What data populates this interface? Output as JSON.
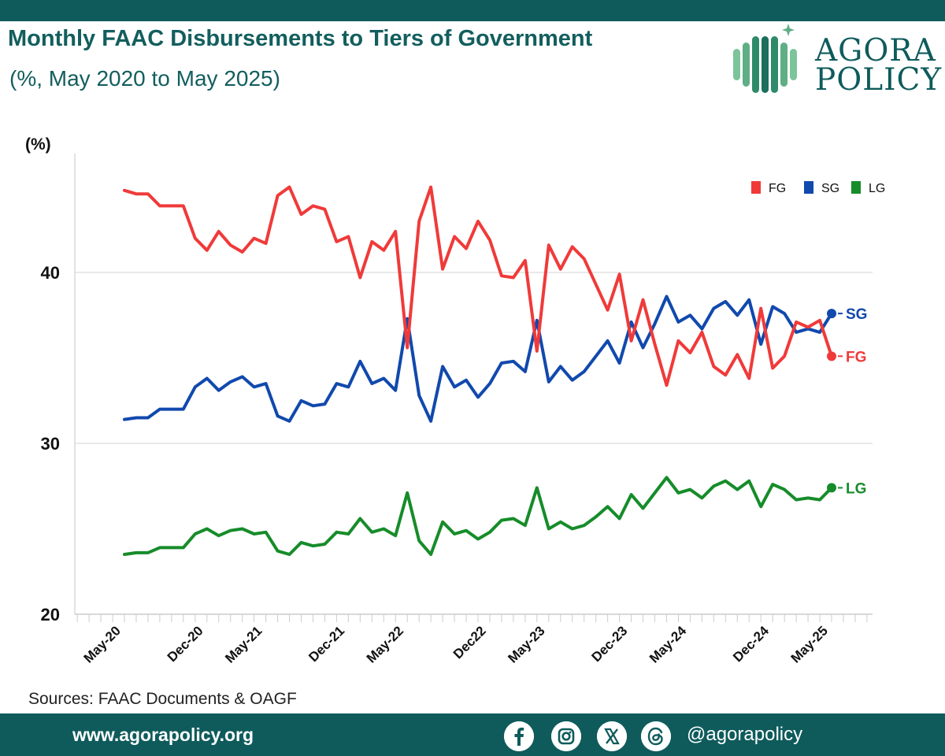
{
  "header": {
    "title": "Monthly FAAC Disbursements to Tiers of Government",
    "subtitle": "(%, May 2020 to May 2025)"
  },
  "logo": {
    "line1": "AGORA",
    "line2": "POLICY"
  },
  "colors": {
    "brand_teal": "#0f5b5c",
    "title_teal": "#135e5e",
    "fg": "#f03a3a",
    "sg": "#1149ad",
    "lg": "#168c2a",
    "logo_green": "#7cc49a"
  },
  "source": "Sources: FAAC Documents & OAGF",
  "footer": {
    "url": "www.agorapolicy.org",
    "handle": "@agorapolicy",
    "icons": [
      "facebook-icon",
      "instagram-icon",
      "x-icon",
      "threads-icon"
    ]
  },
  "chart_data": {
    "type": "line",
    "title": "Monthly FAAC Disbursements to Tiers of Government",
    "ylabel": "(%)",
    "xlabel": "",
    "ylim": [
      20,
      47
    ],
    "yticks": [
      20,
      30,
      40
    ],
    "grid": "horizontal",
    "legend_position": "top-right",
    "x_start": "May-20",
    "x_end": "May-25",
    "xtick_labels": [
      {
        "label": "May-20",
        "index": 0
      },
      {
        "label": "Dec-20",
        "index": 7
      },
      {
        "label": "May-21",
        "index": 12
      },
      {
        "label": "Dec-21",
        "index": 19
      },
      {
        "label": "May-22",
        "index": 24
      },
      {
        "label": "Dec22",
        "index": 31
      },
      {
        "label": "May-23",
        "index": 36
      },
      {
        "label": "Dec-23",
        "index": 43
      },
      {
        "label": "May-24",
        "index": 48
      },
      {
        "label": "Dec-24",
        "index": 55
      },
      {
        "label": "May-25",
        "index": 60
      }
    ],
    "series": [
      {
        "name": "FG",
        "end_label": "FG",
        "values": [
          44.8,
          44.6,
          44.6,
          43.9,
          43.9,
          43.9,
          42.0,
          41.3,
          42.4,
          41.6,
          41.2,
          42.0,
          41.7,
          44.5,
          45.0,
          43.4,
          43.9,
          43.7,
          41.8,
          42.1,
          39.7,
          41.8,
          41.3,
          42.4,
          35.6,
          43.0,
          45.0,
          40.2,
          42.1,
          41.4,
          43.0,
          41.9,
          39.8,
          39.7,
          40.7,
          35.4,
          41.6,
          40.2,
          41.5,
          40.8,
          39.3,
          37.8,
          39.9,
          36.0,
          38.4,
          35.8,
          33.4,
          36.0,
          35.3,
          36.5,
          34.5,
          34.0,
          35.2,
          33.8,
          37.9,
          34.4,
          35.1,
          37.1,
          36.8,
          37.2,
          35.1
        ]
      },
      {
        "name": "SG",
        "end_label": "SG",
        "values": [
          31.4,
          31.5,
          31.5,
          32.0,
          32.0,
          32.0,
          33.3,
          33.8,
          33.1,
          33.6,
          33.9,
          33.3,
          33.5,
          31.6,
          31.3,
          32.5,
          32.2,
          32.3,
          33.5,
          33.3,
          34.8,
          33.5,
          33.8,
          33.1,
          37.3,
          32.8,
          31.3,
          34.5,
          33.3,
          33.7,
          32.7,
          33.5,
          34.7,
          34.8,
          34.2,
          37.2,
          33.6,
          34.5,
          33.7,
          34.2,
          35.1,
          36.0,
          34.7,
          37.1,
          35.6,
          37.0,
          38.6,
          37.1,
          37.5,
          36.7,
          37.9,
          38.3,
          37.5,
          38.4,
          35.8,
          38.0,
          37.6,
          36.5,
          36.7,
          36.5,
          37.6
        ]
      },
      {
        "name": "LG",
        "end_label": "LG",
        "values": [
          23.5,
          23.6,
          23.6,
          23.9,
          23.9,
          23.9,
          24.7,
          25.0,
          24.6,
          24.9,
          25.0,
          24.7,
          24.8,
          23.7,
          23.5,
          24.2,
          24.0,
          24.1,
          24.8,
          24.7,
          25.6,
          24.8,
          25.0,
          24.6,
          27.1,
          24.3,
          23.5,
          25.4,
          24.7,
          24.9,
          24.4,
          24.8,
          25.5,
          25.6,
          25.2,
          27.4,
          25.0,
          25.4,
          25.0,
          25.2,
          25.7,
          26.3,
          25.6,
          27.0,
          26.2,
          27.1,
          28.0,
          27.1,
          27.3,
          26.8,
          27.5,
          27.8,
          27.3,
          27.8,
          26.3,
          27.6,
          27.3,
          26.7,
          26.8,
          26.7,
          27.4
        ]
      }
    ]
  }
}
